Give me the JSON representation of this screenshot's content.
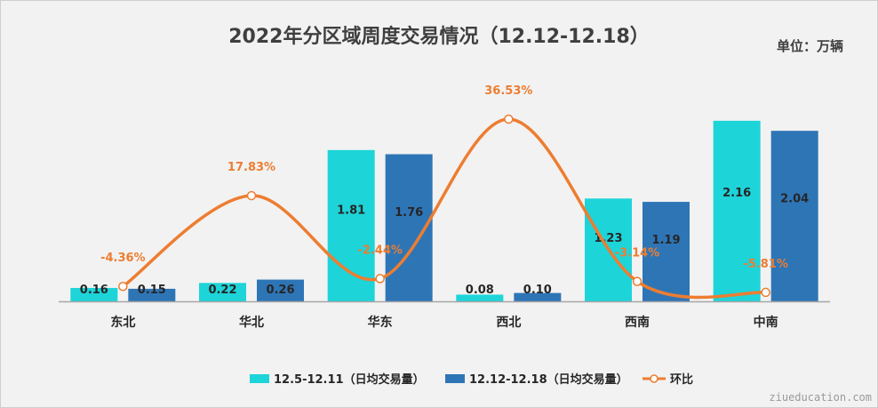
{
  "title": "2022年分区域周度交易情况（12.12-12.18）",
  "unit_label": "单位：万辆",
  "watermark": "ziueducation.com",
  "chart_data": {
    "type": "bar",
    "categories": [
      "东北",
      "华北",
      "华东",
      "西北",
      "西南",
      "中南"
    ],
    "series": [
      {
        "name": "12.5-12.11（日均交易量）",
        "type": "bar",
        "color": "#1dd4d9",
        "values": [
          0.16,
          0.22,
          1.81,
          0.08,
          1.23,
          2.16
        ],
        "labels": [
          "0.16",
          "0.22",
          "1.81",
          "0.08",
          "1.23",
          "2.16"
        ]
      },
      {
        "name": "12.12-12.18（日均交易量）",
        "type": "bar",
        "color": "#2e75b6",
        "values": [
          0.15,
          0.26,
          1.76,
          0.1,
          1.19,
          2.04
        ],
        "labels": [
          "0.15",
          "0.26",
          "1.76",
          "0.10",
          "1.19",
          "2.04"
        ]
      },
      {
        "name": "环比",
        "type": "line",
        "color": "#ed7d31",
        "values": [
          -4.36,
          17.83,
          -2.44,
          36.53,
          -3.14,
          -5.81
        ],
        "labels": [
          "-4.36%",
          "17.83%",
          "-2.44%",
          "36.53%",
          "-3.14%",
          "-5.81%"
        ]
      }
    ],
    "ylim": [
      0,
      2.35
    ],
    "y2lim": [
      -8,
      40
    ],
    "legend": "bottom",
    "grid": false
  }
}
